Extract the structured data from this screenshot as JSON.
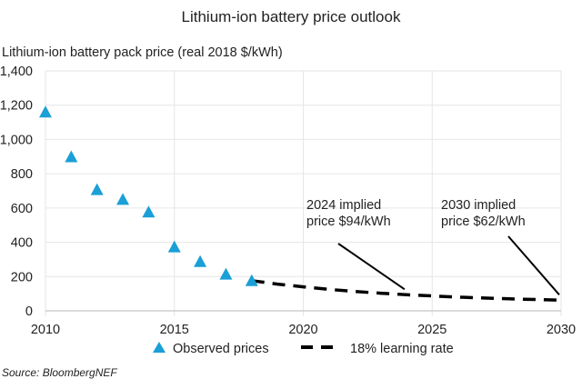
{
  "chart_data": {
    "type": "scatter",
    "title": "Lithium-ion battery price outlook",
    "ylabel": "Lithium-ion battery pack price (real 2018 $/kWh)",
    "xlabel": "",
    "xlim": [
      2010,
      2030
    ],
    "ylim": [
      0,
      1400
    ],
    "x_ticks": [
      "2010",
      "2015",
      "2020",
      "2025",
      "2030"
    ],
    "y_ticks": [
      "0",
      "200",
      "400",
      "600",
      "800",
      "1,000",
      "1,200",
      "1,400"
    ],
    "grid": true,
    "legend_position": "bottom",
    "series": [
      {
        "name": "Observed prices",
        "type": "scatter",
        "marker": "triangle",
        "color": "#1a9fd6",
        "x": [
          2010,
          2011,
          2012,
          2013,
          2014,
          2015,
          2016,
          2017,
          2018
        ],
        "y": [
          1160,
          899,
          707,
          650,
          577,
          373,
          288,
          214,
          176
        ]
      },
      {
        "name": "18% learning rate",
        "type": "line",
        "style": "dashed",
        "color": "#000000",
        "x": [
          2018,
          2019,
          2020,
          2021,
          2022,
          2023,
          2024,
          2025,
          2026,
          2027,
          2028,
          2029,
          2030
        ],
        "y": [
          176,
          156,
          140,
          125,
          113,
          103,
          94,
          87,
          80,
          75,
          70,
          66,
          62
        ]
      }
    ],
    "annotations": [
      {
        "lines": [
          "2024 implied",
          "price $94/kWh"
        ],
        "x": 2024,
        "y": 94
      },
      {
        "lines": [
          "2030 implied",
          "price $62/kWh"
        ],
        "x": 2030,
        "y": 62
      }
    ],
    "source": "Source: BloombergNEF"
  }
}
